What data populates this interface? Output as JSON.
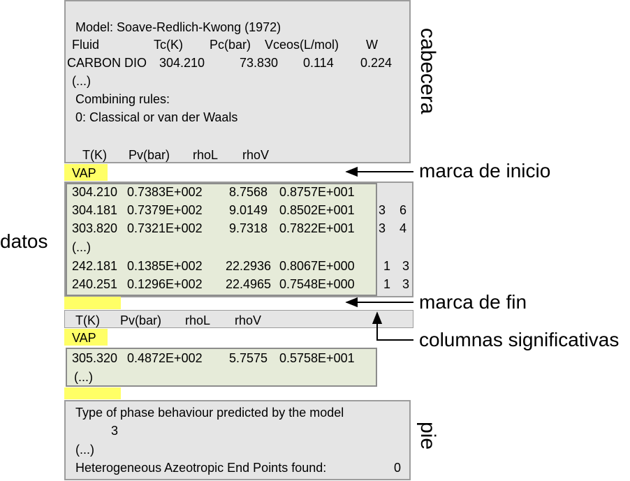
{
  "header_box": {
    "model": "Model: Soave-Redlich-Kwong (1972)",
    "columns": [
      "Fluid",
      "Tc(K)",
      "Pc(bar)",
      "Vceos(L/mol)",
      "W"
    ],
    "fluid_row": [
      "CARBON DIO",
      "304.210",
      "73.830",
      "0.114",
      "0.224"
    ],
    "ellipsis": "(...)",
    "combining_title": "Combining rules:",
    "combining_rule": "0: Classical or van der Waals",
    "data_columns": [
      "T(K)",
      "Pv(bar)",
      "rhoL",
      "rhoV"
    ]
  },
  "start_mark": "VAP",
  "data_box": {
    "rows": [
      [
        "304.210",
        "0.7383E+002",
        "8.7568",
        "0.8757E+001"
      ],
      [
        "304.181",
        "0.7379E+002",
        "9.0149",
        "0.8502E+001"
      ],
      [
        "303.820",
        "0.7321E+002",
        "9.7318",
        "0.7822E+001"
      ],
      [
        "(...)"
      ],
      [
        "242.181",
        "0.1385E+002",
        "22.2936",
        "0.8067E+000"
      ],
      [
        "240.251",
        "0.1296E+002",
        "22.4965",
        "0.7548E+000"
      ]
    ],
    "extra_columns": [
      [
        "3",
        "6"
      ],
      [
        "3",
        "4"
      ],
      [
        "1",
        "3"
      ],
      [
        "1",
        "3"
      ]
    ]
  },
  "second_header": [
    "T(K)",
    "Pv(bar)",
    "rhoL",
    "rhoV"
  ],
  "second_mark": "VAP",
  "second_data": {
    "row": [
      "305.320",
      "0.4872E+002",
      "5.7575",
      "0.5758E+001"
    ],
    "ellipsis": "(...)"
  },
  "footer_box": {
    "line1": "Type of phase behaviour predicted by the model",
    "value1": "3",
    "ellipsis": "(...)",
    "line2": "Heterogeneous Azeotropic End Points found:",
    "value2": "0"
  },
  "labels": {
    "cabecera": "cabecera",
    "datos": "datos",
    "pie": "pie",
    "marca_inicio": "marca de inicio",
    "marca_fin": "marca de fin",
    "columnas": "columnas significativas"
  }
}
